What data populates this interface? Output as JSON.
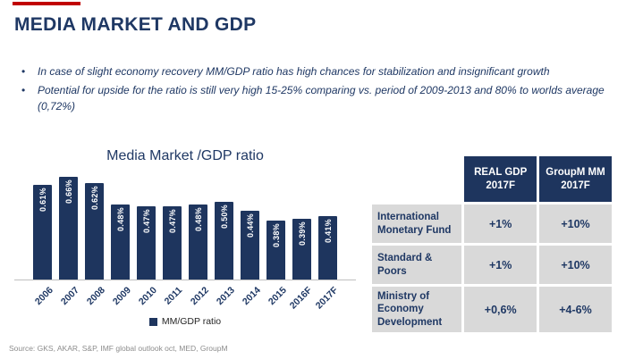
{
  "colors": {
    "navy": "#1e355e",
    "red": "#c00000",
    "row_bg": "#d9d9d9"
  },
  "title": "MEDIA MARKET AND GDP",
  "bullets": [
    "In case of slight economy recovery MM/GDP ratio has high chances for stabilization and insignificant growth",
    "Potential for upside for the ratio is still very high 15-25% comparing vs. period of 2009-2013 and 80% to worlds average (0,72%)"
  ],
  "chart_data": {
    "type": "bar",
    "title": "Media Market /GDP ratio",
    "categories": [
      "2006",
      "2007",
      "2008",
      "2009",
      "2010",
      "2011",
      "2012",
      "2013",
      "2014",
      "2015",
      "2016F",
      "2017F"
    ],
    "values": [
      0.61,
      0.66,
      0.62,
      0.48,
      0.47,
      0.47,
      0.48,
      0.5,
      0.44,
      0.38,
      0.39,
      0.41
    ],
    "labels": [
      "0.61%",
      "0.66%",
      "0.62%",
      "0.48%",
      "0.47%",
      "0.47%",
      "0.48%",
      "0.50%",
      "0.44%",
      "0.38%",
      "0.39%",
      "0.41%"
    ],
    "legend": "MM/GDP ratio",
    "xlabel": "",
    "ylabel": "",
    "ylim": [
      0,
      0.7
    ],
    "grid": false,
    "legend_position": "bottom",
    "bar_color": "#1e355e"
  },
  "table": {
    "headers": [
      "",
      "REAL GDP 2017F",
      "GroupM MM 2017F"
    ],
    "rows": [
      [
        "International Monetary Fund",
        "+1%",
        "+10%"
      ],
      [
        "Standard & Poors",
        "+1%",
        "+10%"
      ],
      [
        "Ministry of Economy Development",
        "+0,6%",
        "+4-6%"
      ]
    ]
  },
  "source": "Source: GKS, AKAR, S&P, IMF global outlook oct, MED, GroupM"
}
